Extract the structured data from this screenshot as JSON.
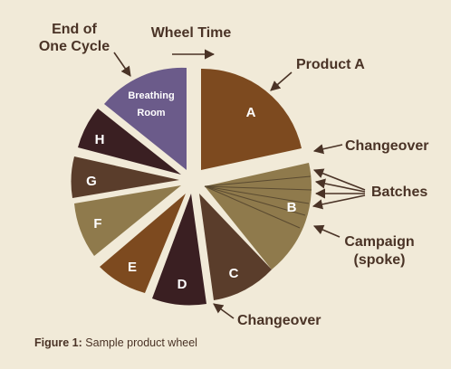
{
  "title": "Wheel Time",
  "labels": {
    "end_of_cycle_line1": "End of",
    "end_of_cycle_line2": "One Cycle",
    "product_a": "Product A",
    "changeover_right": "Changeover",
    "batches": "Batches",
    "campaign_line1": "Campaign",
    "campaign_line2": "(spoke)",
    "changeover_bottom": "Changeover"
  },
  "slices": [
    {
      "id": "A",
      "label": "A",
      "color": "#7d4a1f"
    },
    {
      "id": "B",
      "label": "B",
      "color": "#8f7a4c"
    },
    {
      "id": "C",
      "label": "C",
      "color": "#5a3d2b"
    },
    {
      "id": "D",
      "label": "D",
      "color": "#3a1f22"
    },
    {
      "id": "E",
      "label": "E",
      "color": "#7d4a1f"
    },
    {
      "id": "F",
      "label": "F",
      "color": "#8f7a4c"
    },
    {
      "id": "G",
      "label": "G",
      "color": "#5a3d2b"
    },
    {
      "id": "H",
      "label": "H",
      "color": "#3a1f22"
    },
    {
      "id": "BR",
      "label_line1": "Breathing",
      "label_line2": "Room",
      "color": "#6b5b8a"
    }
  ],
  "caption": {
    "prefix": "Figure 1:",
    "text": "Sample product wheel"
  },
  "colors": {
    "text": "#4a3326",
    "background": "#f1ead8",
    "spokes": "#5a4a30"
  }
}
